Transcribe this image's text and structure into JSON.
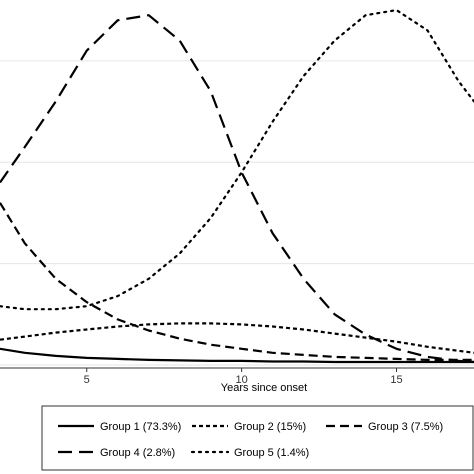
{
  "chart_data": {
    "type": "line",
    "xlabel": "Years since onset",
    "ylabel": "",
    "title": "",
    "xlim": [
      2.2,
      17.5
    ],
    "ylim": [
      0,
      0.36
    ],
    "x_ticks": [
      5,
      10,
      15
    ],
    "x_tick_labels": [
      "5",
      "10",
      "15"
    ],
    "grid": "horizontal",
    "y_gridlines": [
      0,
      0.1,
      0.2,
      0.3
    ],
    "legend_position": "bottom",
    "series": [
      {
        "name": "Group 1 (73.3%)",
        "dash": "solid",
        "x": [
          2.2,
          3,
          4,
          5,
          6,
          7,
          8,
          9,
          10,
          11,
          12,
          13,
          14,
          15,
          16,
          17,
          17.5
        ],
        "y": [
          0.016,
          0.012,
          0.009,
          0.007,
          0.006,
          0.005,
          0.0045,
          0.004,
          0.004,
          0.0035,
          0.0035,
          0.003,
          0.003,
          0.003,
          0.003,
          0.003,
          0.003
        ]
      },
      {
        "name": "Group 2 (15%)",
        "dash": "short-dash",
        "x": [
          2.2,
          3,
          4,
          5,
          6,
          7,
          8,
          9,
          10,
          11,
          12,
          13,
          14,
          15,
          16,
          17,
          17.5
        ],
        "y": [
          0.025,
          0.028,
          0.032,
          0.035,
          0.038,
          0.04,
          0.041,
          0.041,
          0.04,
          0.038,
          0.035,
          0.031,
          0.027,
          0.023,
          0.018,
          0.014,
          0.012
        ]
      },
      {
        "name": "Group 3 (7.5%)",
        "dash": "medium-dash",
        "x": [
          2.2,
          3,
          4,
          5,
          6,
          7,
          8,
          9,
          10,
          11,
          12,
          13,
          14,
          15,
          16,
          17,
          17.5
        ],
        "y": [
          0.16,
          0.12,
          0.085,
          0.062,
          0.045,
          0.034,
          0.026,
          0.02,
          0.016,
          0.012,
          0.01,
          0.008,
          0.007,
          0.006,
          0.005,
          0.005,
          0.005
        ]
      },
      {
        "name": "Group 4 (2.8%)",
        "dash": "long-dash",
        "x": [
          2.2,
          3,
          4,
          5,
          6,
          7,
          8,
          9,
          10,
          11,
          12,
          13,
          14,
          15,
          16,
          17,
          17.5
        ],
        "y": [
          0.18,
          0.215,
          0.26,
          0.31,
          0.34,
          0.345,
          0.32,
          0.27,
          0.19,
          0.13,
          0.085,
          0.05,
          0.03,
          0.016,
          0.008,
          0.004,
          0.003
        ]
      },
      {
        "name": "Group 5 (1.4%)",
        "dash": "dotted",
        "x": [
          2.2,
          3,
          4,
          5,
          6,
          7,
          8,
          9,
          10,
          11,
          12,
          13,
          14,
          15,
          16,
          17,
          17.5
        ],
        "y": [
          0.058,
          0.055,
          0.055,
          0.058,
          0.068,
          0.085,
          0.11,
          0.145,
          0.19,
          0.24,
          0.285,
          0.32,
          0.345,
          0.35,
          0.33,
          0.28,
          0.26
        ]
      }
    ]
  }
}
